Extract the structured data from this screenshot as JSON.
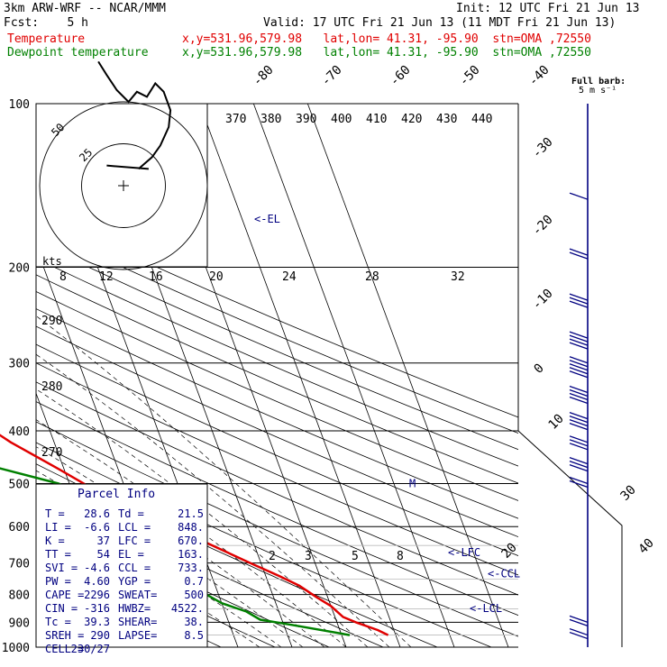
{
  "header": {
    "model": "3km ARW-WRF -- NCAR/MMM",
    "init": "Init: 12 UTC Fri 21 Jun 13",
    "fcst": "Fcst:    5 h",
    "valid": "Valid: 17 UTC Fri 21 Jun 13 (11 MDT Fri 21 Jun 13)",
    "temp_label": "Temperature",
    "temp_info": "x,y=531.96,579.98   lat,lon= 41.31, -95.90  stn=OMA ,72550",
    "dew_label": "Dewpoint temperature",
    "dew_info": "x,y=531.96,579.98   lat,lon= 41.31, -95.90  stn=OMA ,72550"
  },
  "colors": {
    "temperature": "#e00000",
    "dewpoint": "#008000",
    "wind": "#000080",
    "hodograph": "#000000",
    "annotation": "#000080"
  },
  "barb_legend": {
    "line1": "Full barb:",
    "line2": "5 m s⁻¹"
  },
  "hodograph": {
    "speed_unit": "kts",
    "ring_labels": [
      "25",
      "50"
    ],
    "trace_kts": [
      [
        9,
        10
      ],
      [
        17,
        17
      ],
      [
        22,
        24
      ],
      [
        27,
        35
      ],
      [
        28,
        45
      ],
      [
        24,
        56
      ],
      [
        19,
        61
      ],
      [
        14,
        53
      ],
      [
        8,
        56
      ],
      [
        3,
        50
      ],
      [
        -4,
        57
      ],
      [
        -10,
        66
      ],
      [
        -15,
        74
      ]
    ]
  },
  "chart_data": {
    "type": "skew-t",
    "title": "",
    "y_axis": {
      "unit": "hPa",
      "scale": "log",
      "range": [
        100,
        1000
      ],
      "ticks": [
        100,
        200,
        300,
        400,
        500,
        600,
        700,
        800,
        900,
        1000
      ]
    },
    "isotherm_labels": [
      "-80",
      "-70",
      "-60",
      "-50",
      "-40",
      "-30",
      "-20",
      "-10",
      "0",
      "10",
      "20",
      "30",
      "40"
    ],
    "theta_labels": [
      "370",
      "380",
      "390",
      "400",
      "410",
      "420",
      "430",
      "440"
    ],
    "thetae_labels": [
      "290",
      "280",
      "270"
    ],
    "mixing_ratio_labels": [
      "2",
      "3",
      "5",
      "8",
      "12",
      "16",
      "20",
      "24",
      "28",
      "32"
    ],
    "temperature": {
      "pressure": [
        100,
        112,
        130,
        150,
        170,
        190,
        205,
        230,
        260,
        300,
        340,
        380,
        420,
        470,
        520,
        580,
        640,
        700,
        740,
        770,
        810,
        840,
        880,
        900,
        930,
        950
      ],
      "values": [
        -62,
        -63,
        -64,
        -65.5,
        -65,
        -61,
        -58,
        -54.5,
        -50.5,
        -45.5,
        -39.5,
        -33,
        -28,
        -21,
        -15,
        -7,
        1,
        8,
        12.5,
        15.5,
        18,
        20,
        21.5,
        23.5,
        27,
        28.6
      ]
    },
    "dewpoint": {
      "pressure": [
        100,
        125,
        150,
        170,
        190,
        210,
        240,
        270,
        300,
        330,
        345,
        380,
        395,
        450,
        500,
        550,
        620,
        680,
        720,
        760,
        790,
        830,
        860,
        890,
        910,
        950
      ],
      "values": [
        -79,
        -79,
        -80,
        -81,
        -79,
        -74,
        -67,
        -61,
        -55,
        -48,
        -47.5,
        -50,
        -52.5,
        -38,
        -22,
        -12.5,
        -6,
        -3,
        -4,
        -4,
        -3,
        0,
        4,
        6,
        11.5,
        21.5
      ]
    },
    "annotations": [
      {
        "text": "<-EL",
        "pressure": 163
      },
      {
        "text": "<-LFC",
        "pressure": 670
      },
      {
        "text": "<-CCL",
        "pressure": 733
      },
      {
        "text": "<-LCL",
        "pressure": 848
      },
      {
        "text": "M",
        "pressure": 500
      }
    ],
    "wind_barbs": [
      {
        "pressure": 110,
        "speed_kt": 0
      },
      {
        "pressure": 150,
        "speed_kt": 10
      },
      {
        "pressure": 190,
        "speed_kt": 15
      },
      {
        "pressure": 230,
        "speed_kt": 30
      },
      {
        "pressure": 270,
        "speed_kt": 40
      },
      {
        "pressure": 300,
        "speed_kt": 45
      },
      {
        "pressure": 340,
        "speed_kt": 40
      },
      {
        "pressure": 380,
        "speed_kt": 35
      },
      {
        "pressure": 420,
        "speed_kt": 30
      },
      {
        "pressure": 460,
        "speed_kt": 25
      },
      {
        "pressure": 500,
        "speed_kt": 20
      },
      {
        "pressure": 900,
        "speed_kt": 15
      },
      {
        "pressure": 950,
        "speed_kt": 15
      }
    ]
  },
  "parcel_info": {
    "title": "Parcel Info",
    "rows": [
      [
        "T  =",
        "28.6",
        "Td =",
        "21.5"
      ],
      [
        "LI =",
        "-6.6",
        "LCL =",
        "848."
      ],
      [
        "K  =",
        "37",
        "LFC =",
        "670."
      ],
      [
        "TT =",
        "54",
        "EL =",
        "163."
      ],
      [
        "SVI =",
        "-4.6",
        "CCL =",
        "733."
      ],
      [
        "PW =",
        "4.60",
        "YGP =",
        "0.7"
      ],
      [
        "CAPE =",
        "2296",
        "SWEAT=",
        "500"
      ],
      [
        "CIN =",
        "-316",
        "HWBZ=",
        "4522."
      ],
      [
        "Tc =",
        "39.3",
        "SHEAR=",
        "38."
      ],
      [
        "SREH =",
        "290",
        "LAPSE=",
        "8.5"
      ],
      [
        "CELL =",
        "230/27",
        "",
        ""
      ]
    ]
  }
}
